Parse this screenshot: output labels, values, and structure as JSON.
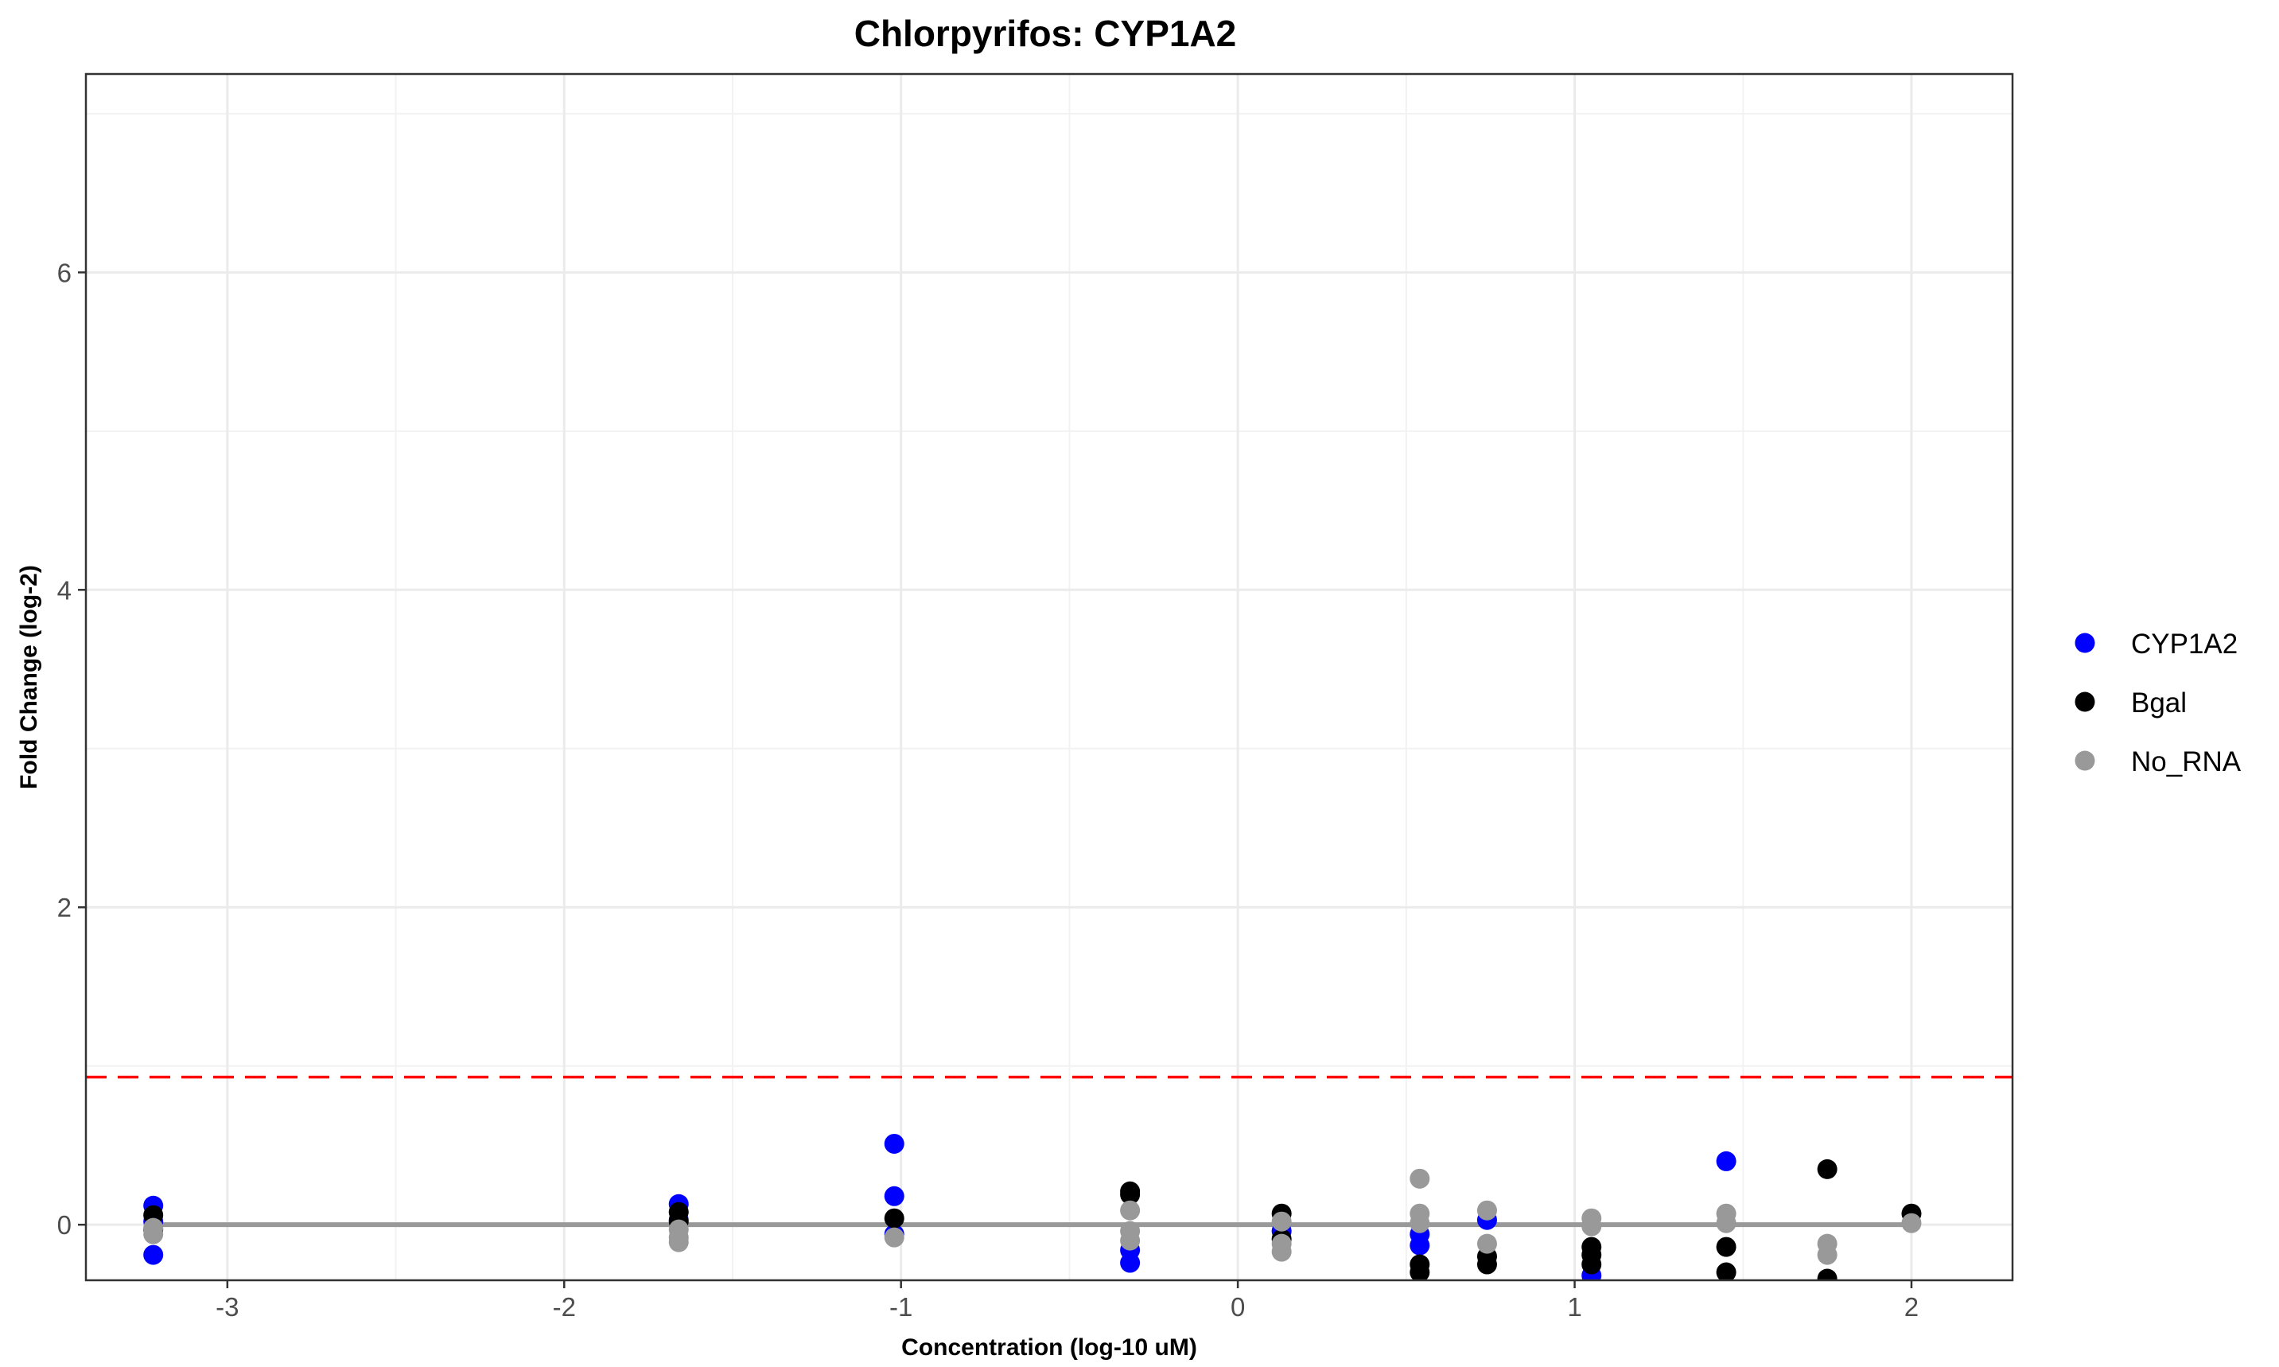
{
  "chart_data": {
    "type": "scatter",
    "title": "Chlorpyrifos: CYP1A2",
    "xlabel": "Concentration (log-10 uM)",
    "ylabel": "Fold Change (log-2)",
    "xlim": [
      -3.42,
      2.3
    ],
    "ylim": [
      -0.35,
      7.25
    ],
    "x_ticks": [
      -3,
      -2,
      -1,
      0,
      1,
      2
    ],
    "y_ticks": [
      0,
      2,
      4,
      6
    ],
    "grid": true,
    "legend_position": "right",
    "threshold_line": {
      "y": 0.93,
      "color": "#ff0000",
      "style": "dashed"
    },
    "reference_line": {
      "y": 0,
      "color": "#999999"
    },
    "series": [
      {
        "name": "CYP1A2",
        "color": "#0000ff",
        "points": [
          [
            -3.22,
            0.12
          ],
          [
            -3.22,
            -0.19
          ],
          [
            -3.22,
            0.02
          ],
          [
            -1.66,
            0.13
          ],
          [
            -1.66,
            0.03
          ],
          [
            -1.02,
            0.51
          ],
          [
            -1.02,
            0.18
          ],
          [
            -1.02,
            -0.06
          ],
          [
            -0.32,
            -0.24
          ],
          [
            -0.32,
            -0.16
          ],
          [
            0.13,
            -0.04
          ],
          [
            0.54,
            -0.13
          ],
          [
            0.54,
            -0.06
          ],
          [
            0.74,
            0.03
          ],
          [
            1.05,
            -0.32
          ],
          [
            1.45,
            0.4
          ]
        ]
      },
      {
        "name": "Bgal",
        "color": "#000000",
        "points": [
          [
            -3.22,
            0.06
          ],
          [
            -3.22,
            -0.03
          ],
          [
            -1.66,
            0.08
          ],
          [
            -1.66,
            0.02
          ],
          [
            -1.02,
            0.04
          ],
          [
            -0.32,
            0.21
          ],
          [
            -0.32,
            0.19
          ],
          [
            0.13,
            0.07
          ],
          [
            0.13,
            -0.09
          ],
          [
            0.54,
            -0.25
          ],
          [
            0.54,
            -0.3
          ],
          [
            0.74,
            -0.2
          ],
          [
            0.74,
            -0.25
          ],
          [
            1.05,
            -0.14
          ],
          [
            1.05,
            -0.19
          ],
          [
            1.05,
            -0.25
          ],
          [
            1.45,
            -0.14
          ],
          [
            1.45,
            -0.3
          ],
          [
            1.75,
            0.35
          ],
          [
            1.75,
            -0.34
          ],
          [
            2.0,
            0.07
          ]
        ]
      },
      {
        "name": "No_RNA",
        "color": "#999999",
        "points": [
          [
            -3.22,
            -0.02
          ],
          [
            -3.22,
            -0.06
          ],
          [
            -1.66,
            -0.03
          ],
          [
            -1.66,
            -0.08
          ],
          [
            -1.66,
            -0.11
          ],
          [
            -1.02,
            -0.08
          ],
          [
            -0.32,
            0.09
          ],
          [
            -0.32,
            -0.04
          ],
          [
            -0.32,
            -0.1
          ],
          [
            0.13,
            0.02
          ],
          [
            0.13,
            -0.12
          ],
          [
            0.13,
            -0.17
          ],
          [
            0.54,
            0.29
          ],
          [
            0.54,
            0.07
          ],
          [
            0.54,
            0.01
          ],
          [
            0.74,
            0.09
          ],
          [
            0.74,
            -0.12
          ],
          [
            1.05,
            0.04
          ],
          [
            1.05,
            -0.01
          ],
          [
            1.45,
            0.07
          ],
          [
            1.45,
            0.01
          ],
          [
            1.75,
            -0.12
          ],
          [
            1.75,
            -0.19
          ],
          [
            2.0,
            0.01
          ]
        ]
      }
    ]
  }
}
